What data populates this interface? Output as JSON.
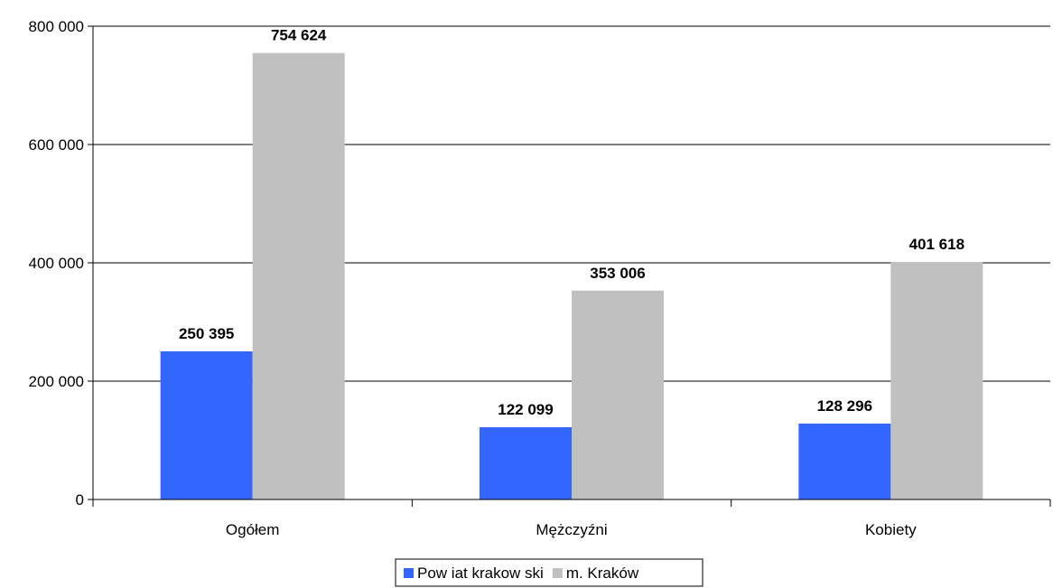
{
  "chart_data": {
    "type": "bar",
    "categories": [
      "Ogółem",
      "Mężczyźni",
      "Kobiety"
    ],
    "series": [
      {
        "name": "Pow iat krakow ski",
        "values": [
          250395,
          122099,
          128296
        ],
        "labels": [
          "250 395",
          "122 099",
          "128 296"
        ],
        "color": "#3366FF"
      },
      {
        "name": "m. Kraków",
        "values": [
          754624,
          353006,
          401618
        ],
        "labels": [
          "754 624",
          "353 006",
          "401 618"
        ],
        "color": "#C0C0C0"
      }
    ],
    "ylim": [
      0,
      800000
    ],
    "yticks": [
      0,
      200000,
      400000,
      600000,
      800000
    ],
    "ytick_labels": [
      "0",
      "200 000",
      "400 000",
      "600 000",
      "800 000"
    ],
    "grid": true,
    "legend_position": "bottom"
  }
}
